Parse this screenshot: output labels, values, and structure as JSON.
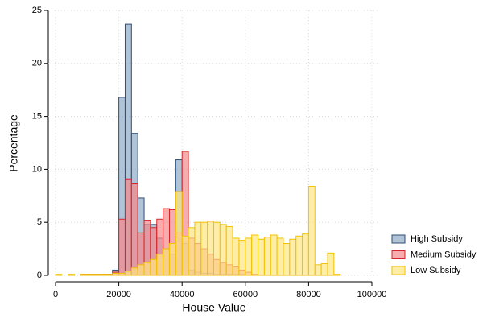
{
  "chart_data": {
    "type": "histogram",
    "xlabel": "House Value",
    "ylabel": "Percentage",
    "xlim": [
      0,
      100000
    ],
    "ylim": [
      0,
      25
    ],
    "xticks": [
      0,
      20000,
      40000,
      60000,
      80000,
      100000
    ],
    "yticks": [
      0,
      5,
      10,
      15,
      20,
      25
    ],
    "grid": true,
    "legend": "lower right",
    "series": [
      {
        "name": "High Subsidy",
        "color": "#8fa9c6",
        "edgecolor": "#2d4f78",
        "bins": [
          16000,
          18000,
          20000,
          22000,
          24000,
          26000,
          28000,
          30000,
          32000,
          34000,
          36000,
          38000,
          40000,
          42000,
          44000,
          46000,
          48000,
          50000,
          52000,
          54000,
          56000,
          58000,
          60000
        ],
        "values": [
          0.1,
          0.5,
          16.8,
          23.7,
          13.4,
          7.3,
          4.8,
          4.8,
          3.5,
          2.5,
          2.0,
          10.9,
          3.0,
          0.5,
          0.3,
          0.2,
          0.2,
          0.1,
          0.1,
          0.1,
          0.1,
          0.1
        ]
      },
      {
        "name": "Medium Subsidy",
        "color": "#f48a8a",
        "edgecolor": "#d6262a",
        "bins": [
          8000,
          10000,
          12000,
          14000,
          16000,
          18000,
          20000,
          22000,
          24000,
          26000,
          28000,
          30000,
          32000,
          34000,
          36000,
          38000,
          40000,
          42000,
          44000,
          46000,
          48000,
          50000,
          52000,
          54000,
          56000,
          58000,
          60000,
          62000,
          64000
        ],
        "values": [
          0.1,
          0.1,
          0.1,
          0.1,
          0.1,
          0.3,
          5.3,
          9.1,
          8.7,
          4.0,
          5.2,
          4.5,
          5.3,
          6.3,
          6.2,
          4.0,
          11.7,
          3.5,
          3.0,
          2.5,
          2.0,
          1.5,
          1.2,
          1.0,
          0.8,
          0.5,
          0.3,
          0.1
        ]
      },
      {
        "name": "Low Subsidy",
        "color": "#fde581",
        "edgecolor": "#f2c200",
        "bins": [
          0,
          2000,
          4000,
          6000,
          8000,
          10000,
          12000,
          14000,
          16000,
          18000,
          20000,
          22000,
          24000,
          26000,
          28000,
          30000,
          32000,
          34000,
          36000,
          38000,
          40000,
          42000,
          44000,
          46000,
          48000,
          50000,
          52000,
          54000,
          56000,
          58000,
          60000,
          62000,
          64000,
          66000,
          68000,
          70000,
          72000,
          74000,
          76000,
          78000,
          80000,
          82000,
          84000,
          86000,
          88000,
          90000
        ],
        "values": [
          0.1,
          0,
          0.1,
          0,
          0.1,
          0.1,
          0.1,
          0.1,
          0.1,
          0.2,
          0.2,
          0.4,
          0.7,
          1.0,
          1.2,
          1.5,
          2.0,
          2.5,
          3.0,
          7.9,
          3.7,
          4.5,
          5.0,
          5.0,
          5.1,
          5.0,
          4.8,
          4.6,
          3.5,
          3.3,
          3.5,
          3.8,
          3.4,
          3.6,
          3.8,
          3.5,
          3.0,
          3.4,
          3.7,
          3.9,
          8.4,
          1.0,
          1.1,
          2.1,
          0.1
        ]
      }
    ]
  }
}
